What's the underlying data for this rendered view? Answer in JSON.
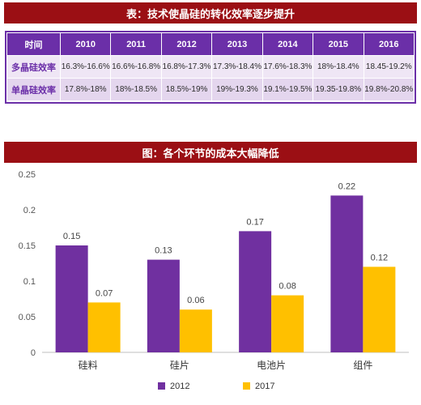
{
  "table_banner": "表：技术使晶硅的转化效率逐步提升",
  "chart_banner": "图：各个环节的成本大幅降低",
  "table": {
    "headers": [
      "时间",
      "2010",
      "2011",
      "2012",
      "2013",
      "2014",
      "2015",
      "2016"
    ],
    "rows": [
      [
        "多晶硅效率",
        "16.3%-16.6%",
        "16.6%-16.8%",
        "16.8%-17.3%",
        "17.3%-18.4%",
        "17.6%-18.3%",
        "18%-18.4%",
        "18.45-19.2%"
      ],
      [
        "单晶硅效率",
        "17.8%-18%",
        "18%-18.5%",
        "18.5%-19%",
        "19%-19.3%",
        "19.1%-19.5%",
        "19.35-19.8%",
        "19.8%-20.8%"
      ]
    ]
  },
  "colors": {
    "banner": "#9b0f14",
    "header": "#6b2fa8",
    "series_2012": "#7030a0",
    "series_2017": "#ffc000"
  },
  "chart_data": {
    "type": "bar",
    "title": "图：各个环节的成本大幅降低",
    "categories": [
      "硅料",
      "硅片",
      "电池片",
      "组件"
    ],
    "series": [
      {
        "name": "2012",
        "values": [
          0.15,
          0.13,
          0.17,
          0.22
        ],
        "color": "#7030a0"
      },
      {
        "name": "2017",
        "values": [
          0.07,
          0.06,
          0.08,
          0.12
        ],
        "color": "#ffc000"
      }
    ],
    "value_labels": [
      [
        "0.15",
        "0.13",
        "0.17",
        "0.22"
      ],
      [
        "0.07",
        "0.06",
        "0.08",
        "0.12"
      ]
    ],
    "yticks": [
      "0",
      "0.05",
      "0.1",
      "0.15",
      "0.2",
      "0.25"
    ],
    "ylim": [
      0,
      0.25
    ],
    "grid": false,
    "legend_position": "bottom"
  }
}
